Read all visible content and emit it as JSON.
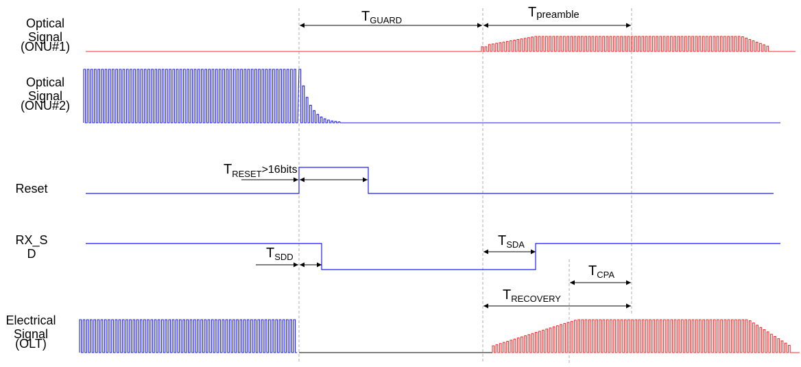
{
  "colors": {
    "blue": "#1a1aff",
    "red": "#ff2a2a",
    "black": "#000000",
    "guide": "#9a9a9a"
  },
  "signals": {
    "onu1": {
      "line1": "Optical",
      "line2": "Signal",
      "line3": "(ONU#1)"
    },
    "onu2": {
      "line1": "Optical",
      "line2": "Signal",
      "line3": "(ONU#2)"
    },
    "reset": {
      "line1": "Reset"
    },
    "rxsd": {
      "line1": "RX_S",
      "line2": "D"
    },
    "elec": {
      "line1": "Electrical",
      "line2": "Signal",
      "line3": "(OLT)"
    }
  },
  "timings": {
    "guard": {
      "main": "T",
      "sub": "GUARD"
    },
    "preamble": {
      "main": "T",
      "sub": "preamble"
    },
    "reset": {
      "main": "T",
      "sub": "RESET",
      "suffix": ">16bits"
    },
    "sdd": {
      "main": "T",
      "sub": "SDD"
    },
    "sda": {
      "main": "T",
      "sub": "SDA"
    },
    "cpa": {
      "main": "T",
      "sub": "CPA"
    },
    "recovery": {
      "main": "T",
      "sub": "RECOVERY"
    }
  }
}
